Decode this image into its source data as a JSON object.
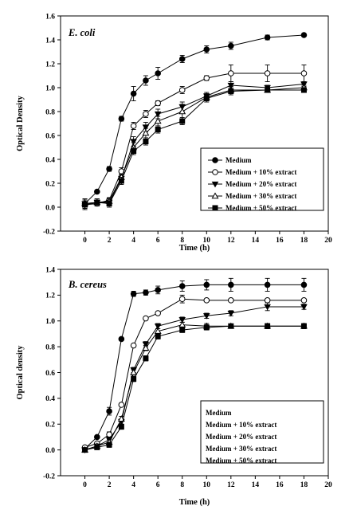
{
  "chart_data": [
    {
      "type": "line",
      "title": "E. coli",
      "xlabel": "Time (h)",
      "ylabel": "Optical Density",
      "xlim": [
        -2,
        20
      ],
      "ylim": [
        -0.2,
        1.6
      ],
      "xticks": [
        "0",
        "2",
        "4",
        "6",
        "8",
        "10",
        "12",
        "14",
        "16",
        "18",
        "20"
      ],
      "yticks": [
        "-0.2",
        "0.0",
        "0.2",
        "0.4",
        "0.6",
        "0.8",
        "1.0",
        "1.2",
        "1.4",
        "1.6"
      ],
      "legend_placement": "lower-right",
      "legend_box": true,
      "series": [
        {
          "name": "Medium",
          "marker": "filled-circle",
          "x": [
            0,
            1,
            2,
            3,
            4,
            5,
            6,
            8,
            10,
            12,
            15,
            18
          ],
          "y": [
            0.03,
            0.13,
            0.32,
            0.74,
            0.95,
            1.06,
            1.12,
            1.24,
            1.32,
            1.35,
            1.42,
            1.44
          ],
          "err": [
            0.04,
            0.01,
            0.02,
            0.02,
            0.06,
            0.04,
            0.05,
            0.03,
            0.03,
            0.03,
            0.02,
            0.01
          ]
        },
        {
          "name": "Medium + 10% extract",
          "marker": "open-circle",
          "x": [
            0,
            1,
            2,
            3,
            4,
            5,
            6,
            8,
            10,
            12,
            15,
            18
          ],
          "y": [
            0.02,
            0.03,
            0.06,
            0.3,
            0.68,
            0.78,
            0.87,
            0.98,
            1.08,
            1.12,
            1.12,
            1.12
          ],
          "err": [
            0.04,
            0.01,
            0.02,
            0.03,
            0.03,
            0.03,
            0.02,
            0.03,
            0.02,
            0.07,
            0.07,
            0.07
          ]
        },
        {
          "name": "Medium + 20% extract",
          "marker": "filled-triangle-down",
          "x": [
            0,
            1,
            2,
            3,
            4,
            5,
            6,
            8,
            10,
            12,
            15,
            18
          ],
          "y": [
            0.03,
            0.04,
            0.04,
            0.24,
            0.55,
            0.67,
            0.78,
            0.84,
            0.93,
            1.02,
            1.0,
            1.03
          ],
          "err": [
            0.04,
            0.03,
            0.03,
            0.03,
            0.04,
            0.04,
            0.04,
            0.04,
            0.03,
            0.03,
            0.02,
            0.02
          ]
        },
        {
          "name": "Medium + 30% extract",
          "marker": "open-triangle-up",
          "x": [
            0,
            1,
            2,
            3,
            4,
            5,
            6,
            8,
            10,
            12,
            15,
            18
          ],
          "y": [
            0.03,
            0.04,
            0.05,
            0.25,
            0.5,
            0.62,
            0.72,
            0.8,
            0.92,
            0.98,
            0.98,
            1.0
          ],
          "err": [
            0.04,
            0.03,
            0.03,
            0.03,
            0.04,
            0.04,
            0.04,
            0.06,
            0.03,
            0.03,
            0.02,
            0.02
          ]
        },
        {
          "name": "Medium + 50% extract",
          "marker": "filled-square",
          "x": [
            0,
            1,
            2,
            3,
            4,
            5,
            6,
            8,
            10,
            12,
            15,
            18
          ],
          "y": [
            0.02,
            0.04,
            0.03,
            0.22,
            0.47,
            0.55,
            0.65,
            0.72,
            0.91,
            0.97,
            0.98,
            0.98
          ],
          "err": [
            0.04,
            0.03,
            0.03,
            0.03,
            0.03,
            0.03,
            0.03,
            0.03,
            0.03,
            0.03,
            0.02,
            0.02
          ]
        }
      ]
    },
    {
      "type": "line",
      "title": "B. cereus",
      "xlabel": "Time (h)",
      "ylabel": "Optical density",
      "xlim": [
        -2,
        20
      ],
      "ylim": [
        -0.2,
        1.4
      ],
      "xticks": [
        "0",
        "2",
        "4",
        "6",
        "8",
        "10",
        "12",
        "14",
        "16",
        "18",
        "20"
      ],
      "yticks": [
        "-0.2",
        "0.0",
        "0.2",
        "0.4",
        "0.6",
        "0.8",
        "1.0",
        "1.2",
        "1.4"
      ],
      "legend_placement": "lower-right",
      "legend_box": true,
      "legend_markers": false,
      "series": [
        {
          "name": "Medium",
          "marker": "filled-circle",
          "x": [
            0,
            1,
            2,
            3,
            4,
            5,
            6,
            8,
            10,
            12,
            15,
            18
          ],
          "y": [
            0.01,
            0.1,
            0.3,
            0.86,
            1.21,
            1.22,
            1.24,
            1.27,
            1.28,
            1.28,
            1.28,
            1.28
          ],
          "err": [
            0.01,
            0.01,
            0.03,
            0.01,
            0.02,
            0.02,
            0.03,
            0.04,
            0.04,
            0.05,
            0.05,
            0.05
          ]
        },
        {
          "name": "Medium + 10% extract",
          "marker": "open-circle",
          "x": [
            0,
            1,
            2,
            3,
            4,
            5,
            6,
            8,
            10,
            12,
            15,
            18
          ],
          "y": [
            0.02,
            0.05,
            0.12,
            0.35,
            0.81,
            1.02,
            1.06,
            1.17,
            1.16,
            1.16,
            1.16,
            1.16
          ],
          "err": [
            0.01,
            0.01,
            0.02,
            0.01,
            0.01,
            0.01,
            0.01,
            0.03,
            0.01,
            0.01,
            0.01,
            0.01
          ]
        },
        {
          "name": "Medium + 20% extract",
          "marker": "filled-triangle-down",
          "x": [
            0,
            1,
            2,
            3,
            4,
            5,
            6,
            8,
            10,
            12,
            15,
            18
          ],
          "y": [
            0.0,
            0.03,
            0.08,
            0.22,
            0.62,
            0.82,
            0.96,
            1.01,
            1.04,
            1.06,
            1.11,
            1.11
          ],
          "err": [
            0.01,
            0.01,
            0.02,
            0.02,
            0.02,
            0.02,
            0.02,
            0.02,
            0.02,
            0.02,
            0.03,
            0.02
          ]
        },
        {
          "name": "Medium + 30% extract",
          "marker": "open-triangle-up",
          "x": [
            0,
            1,
            2,
            3,
            4,
            5,
            6,
            8,
            10,
            12,
            15,
            18
          ],
          "y": [
            0.0,
            0.03,
            0.06,
            0.24,
            0.6,
            0.79,
            0.92,
            0.97,
            0.96,
            0.96,
            0.96,
            0.96
          ],
          "err": [
            0.01,
            0.01,
            0.02,
            0.02,
            0.02,
            0.02,
            0.02,
            0.02,
            0.02,
            0.01,
            0.02,
            0.02
          ]
        },
        {
          "name": "Medium + 50% extract",
          "marker": "filled-square",
          "x": [
            0,
            1,
            2,
            3,
            4,
            5,
            6,
            8,
            10,
            12,
            15,
            18
          ],
          "y": [
            0.0,
            0.02,
            0.04,
            0.18,
            0.55,
            0.71,
            0.88,
            0.93,
            0.95,
            0.96,
            0.96,
            0.96
          ],
          "err": [
            0.01,
            0.01,
            0.02,
            0.02,
            0.02,
            0.02,
            0.02,
            0.02,
            0.02,
            0.01,
            0.02,
            0.02
          ]
        }
      ]
    }
  ]
}
